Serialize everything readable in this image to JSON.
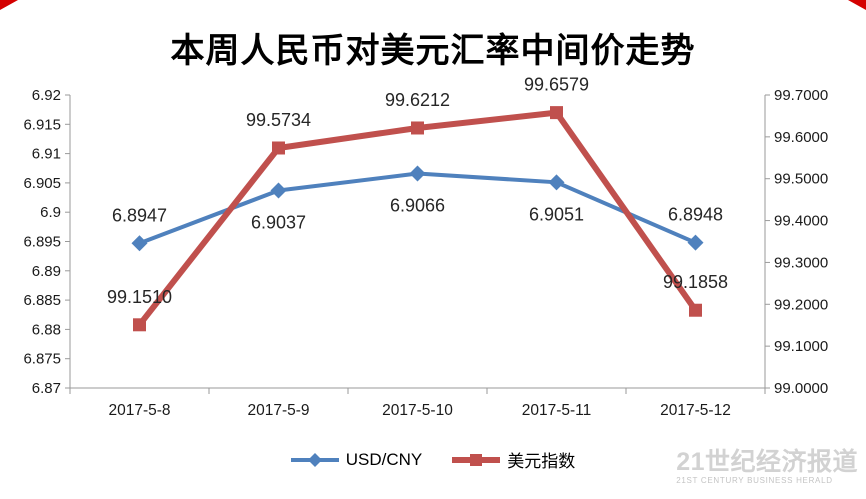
{
  "page": {
    "title": "本周人民币对美元汇率中间价走势",
    "accent_red": "#d40000"
  },
  "watermark": {
    "brand": "21世纪经济报道",
    "sub": "21ST CENTURY BUSINESS HERALD"
  },
  "chart_data": {
    "type": "line",
    "title": "本周人民币对美元汇率中间价走势",
    "categories": [
      "2017-5-8",
      "2017-5-9",
      "2017-5-10",
      "2017-5-11",
      "2017-5-12"
    ],
    "series": [
      {
        "name": "USD/CNY",
        "axis": "left",
        "color": "#4f81bd",
        "marker": "diamond",
        "line_width": 4,
        "values": [
          6.8947,
          6.9037,
          6.9066,
          6.9051,
          6.8948
        ],
        "labels": [
          "6.8947",
          "6.9037",
          "6.9066",
          "6.9051",
          "6.8948"
        ],
        "label_side": [
          "above",
          "below",
          "below",
          "below",
          "above"
        ]
      },
      {
        "name": "美元指数",
        "axis": "right",
        "color": "#c0504d",
        "marker": "square",
        "line_width": 6,
        "values": [
          99.151,
          99.5734,
          99.6212,
          99.6579,
          99.1858
        ],
        "labels": [
          "99.1510",
          "99.5734",
          "99.6212",
          "99.6579",
          "99.1858"
        ],
        "label_side": [
          "above",
          "above",
          "above",
          "above",
          "above"
        ]
      }
    ],
    "left_axis": {
      "min": 6.87,
      "max": 6.92,
      "ticks": [
        "6.92",
        "6.915",
        "6.91",
        "6.905",
        "6.9",
        "6.895",
        "6.89",
        "6.885",
        "6.88",
        "6.875",
        "6.87"
      ]
    },
    "right_axis": {
      "min": 99.0,
      "max": 99.7,
      "ticks": [
        "99.7000",
        "99.6000",
        "99.5000",
        "99.4000",
        "99.3000",
        "99.2000",
        "99.1000",
        "99.0000"
      ]
    },
    "legend": [
      "USD/CNY",
      "美元指数"
    ],
    "legend_position": "bottom",
    "grid": false
  }
}
